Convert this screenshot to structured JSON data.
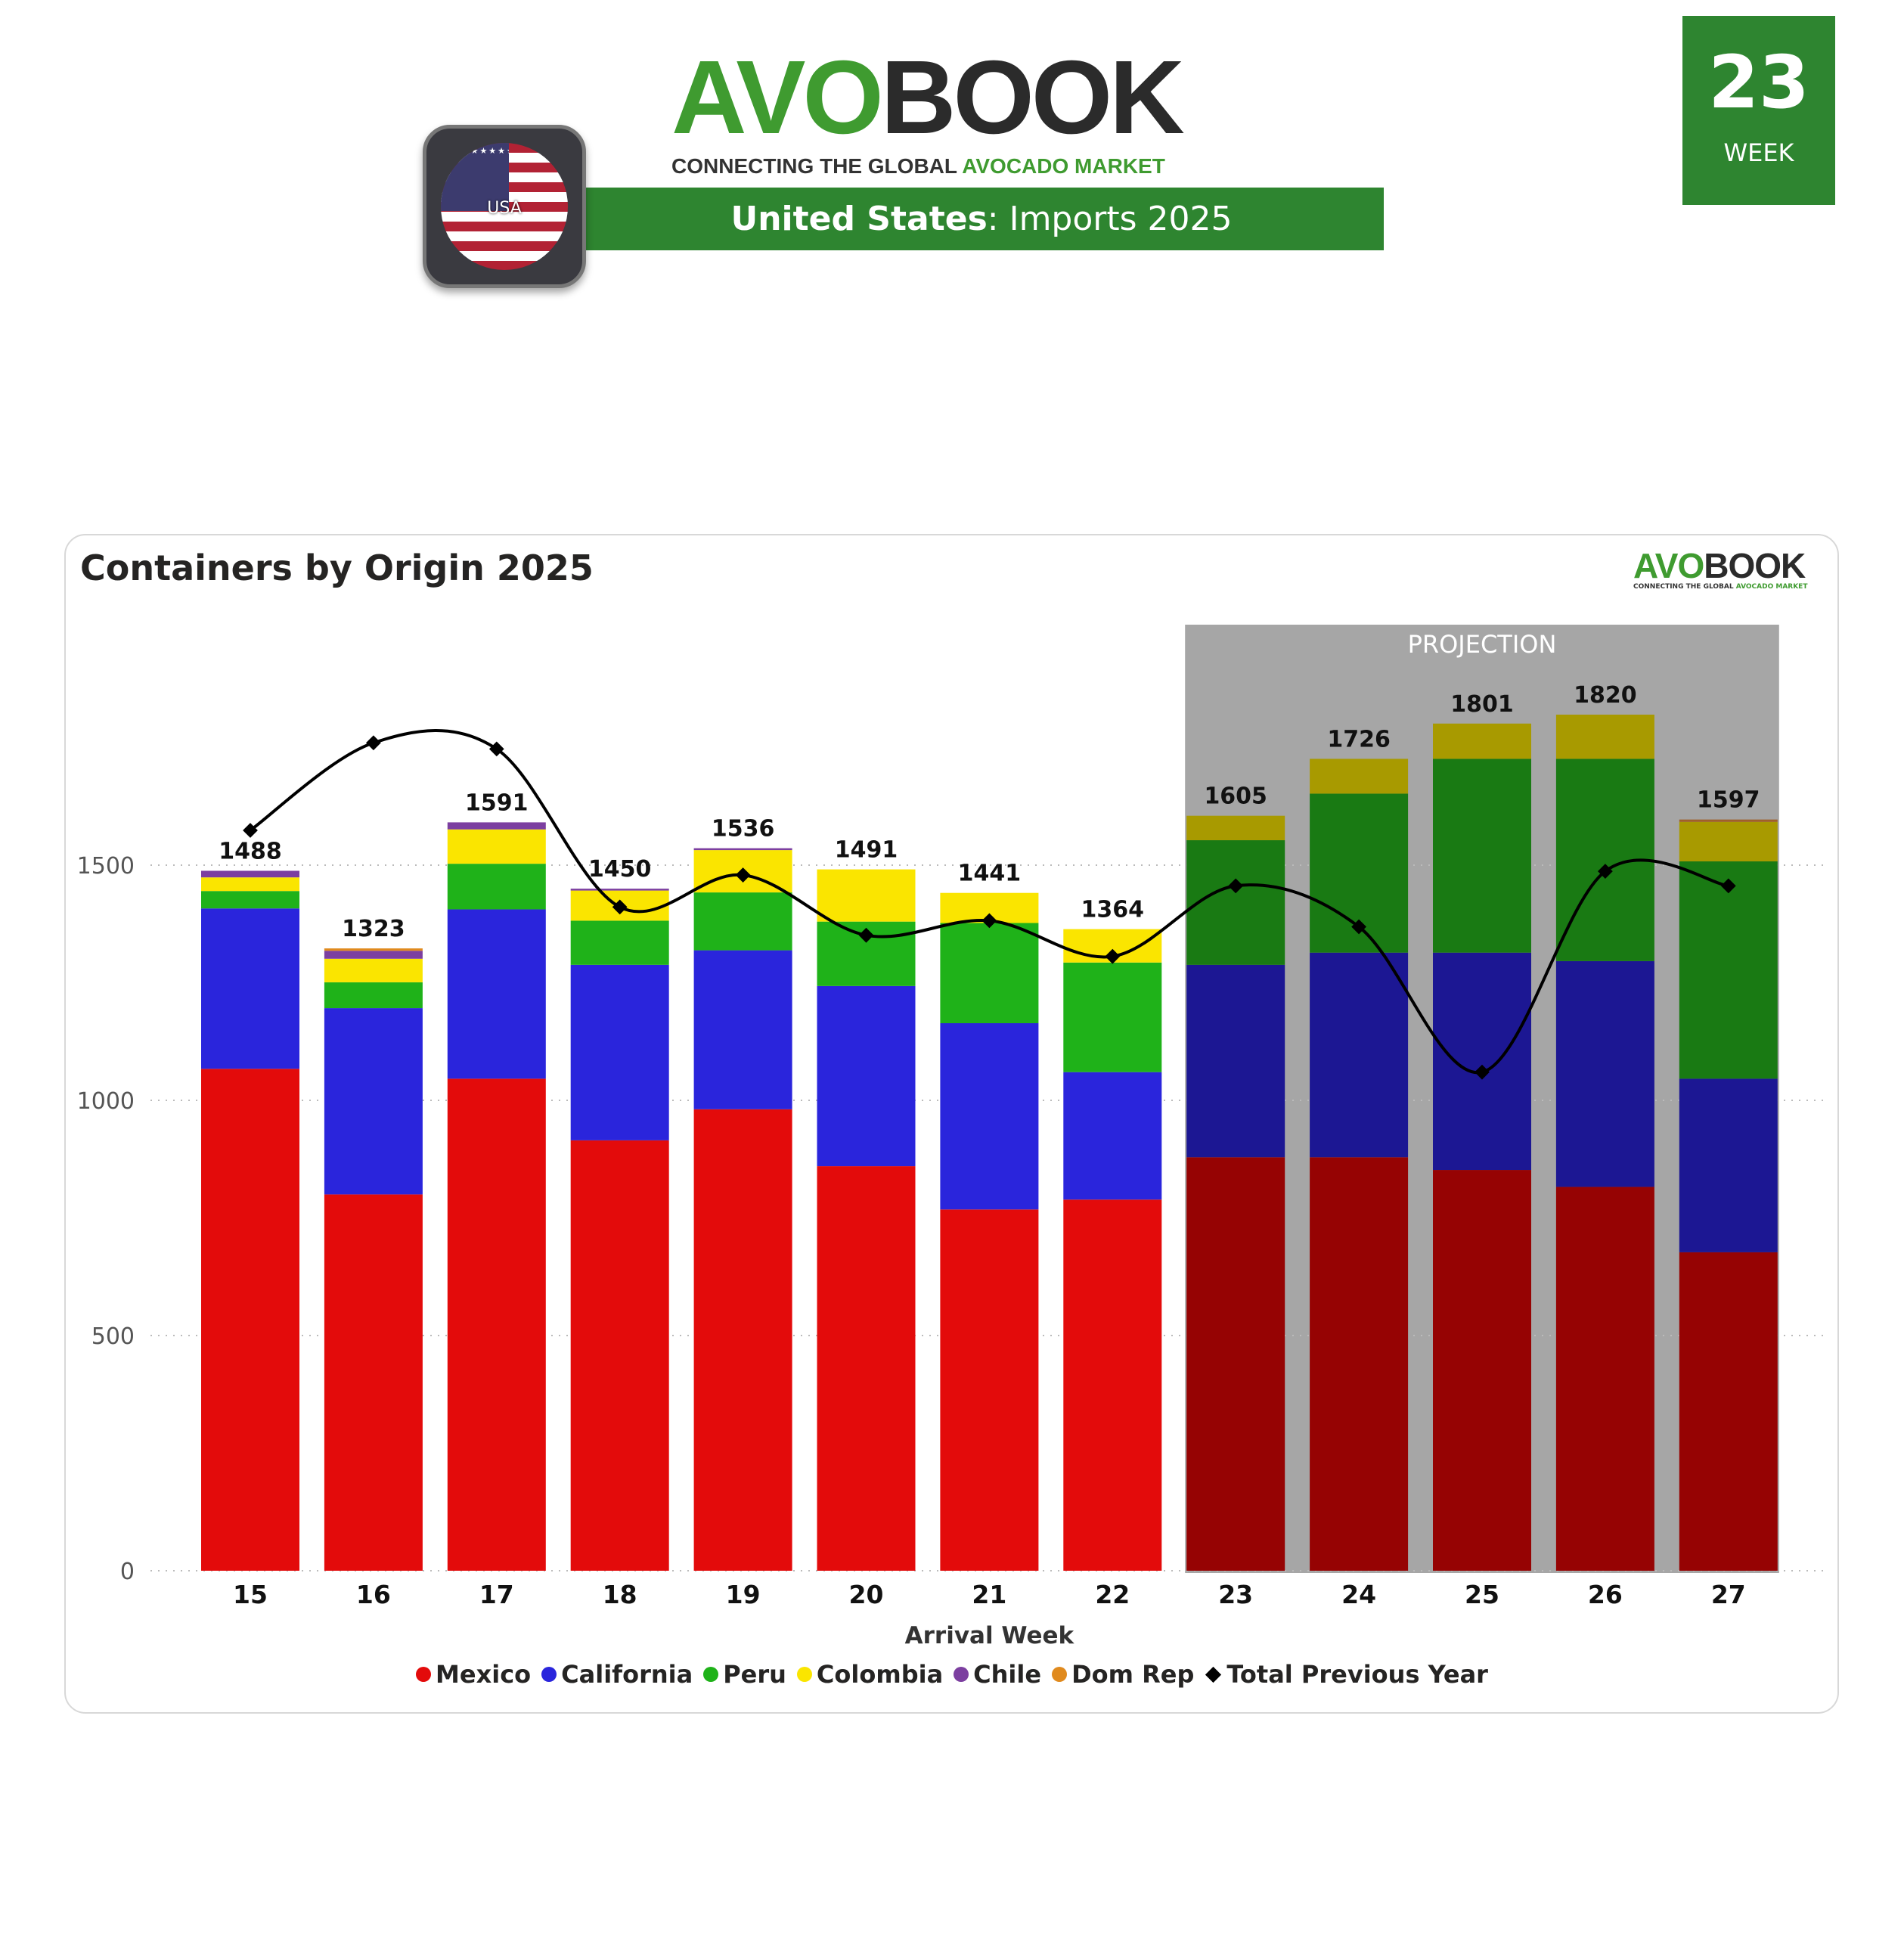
{
  "header": {
    "logo_avo": "AVO",
    "logo_book": "BOOK",
    "tagline_a": "CONNECTING THE GLOBAL ",
    "tagline_b": "AVOCADO MARKET",
    "country": "United States",
    "subtitle": ": Imports 2025",
    "flag_label": "USA",
    "week_number": "23",
    "week_label": "WEEK"
  },
  "colors": {
    "brand_green": "#2e8530",
    "projection_bg": "#a6a6a6"
  },
  "chart_data": {
    "type": "bar",
    "title": "Containers by Origin 2025",
    "xlabel": "Arrival Week",
    "ylabel": "",
    "ylim": [
      0,
      1900
    ],
    "yticks": [
      0,
      500,
      1000,
      1500
    ],
    "grid": true,
    "legend_position": "bottom",
    "projection_label": "PROJECTION",
    "projection_from": "23",
    "categories": [
      "15",
      "16",
      "17",
      "18",
      "19",
      "20",
      "21",
      "22",
      "23",
      "24",
      "25",
      "26",
      "27"
    ],
    "series": [
      {
        "name": "Mexico",
        "color": "#e30b0b",
        "proj_color": "#960303",
        "values": [
          1067,
          800,
          1046,
          915,
          981,
          860,
          768,
          789,
          879,
          879,
          852,
          816,
          677
        ]
      },
      {
        "name": "California",
        "color": "#2a25dc",
        "proj_color": "#1c1793",
        "values": [
          341,
          396,
          360,
          373,
          338,
          383,
          396,
          271,
          409,
          435,
          462,
          480,
          369
        ]
      },
      {
        "name": "Peru",
        "color": "#1fb219",
        "proj_color": "#197a13",
        "values": [
          37,
          55,
          97,
          94,
          123,
          137,
          213,
          233,
          265,
          338,
          412,
          430,
          462
        ]
      },
      {
        "name": "Colombia",
        "color": "#fae500",
        "proj_color": "#a89a00",
        "values": [
          29,
          50,
          73,
          64,
          90,
          111,
          64,
          71,
          52,
          74,
          75,
          94,
          84
        ]
      },
      {
        "name": "Chile",
        "color": "#7c3fa0",
        "proj_color": "#553070",
        "values": [
          14,
          17,
          15,
          4,
          4,
          0,
          0,
          0,
          0,
          0,
          0,
          0,
          0
        ]
      },
      {
        "name": "Dom Rep",
        "color": "#e08a1e",
        "proj_color": "#a0602a",
        "values": [
          0,
          5,
          0,
          0,
          0,
          0,
          0,
          0,
          0,
          0,
          0,
          0,
          5
        ]
      }
    ],
    "totals": [
      1488,
      1323,
      1591,
      1450,
      1536,
      1491,
      1441,
      1364,
      1605,
      1726,
      1801,
      1820,
      1597
    ],
    "line": {
      "name": "Total Previous Year",
      "color": "#000000",
      "values": [
        1574,
        1760,
        1747,
        1411,
        1479,
        1351,
        1382,
        1306,
        1456,
        1369,
        1060,
        1487,
        1456
      ]
    }
  }
}
